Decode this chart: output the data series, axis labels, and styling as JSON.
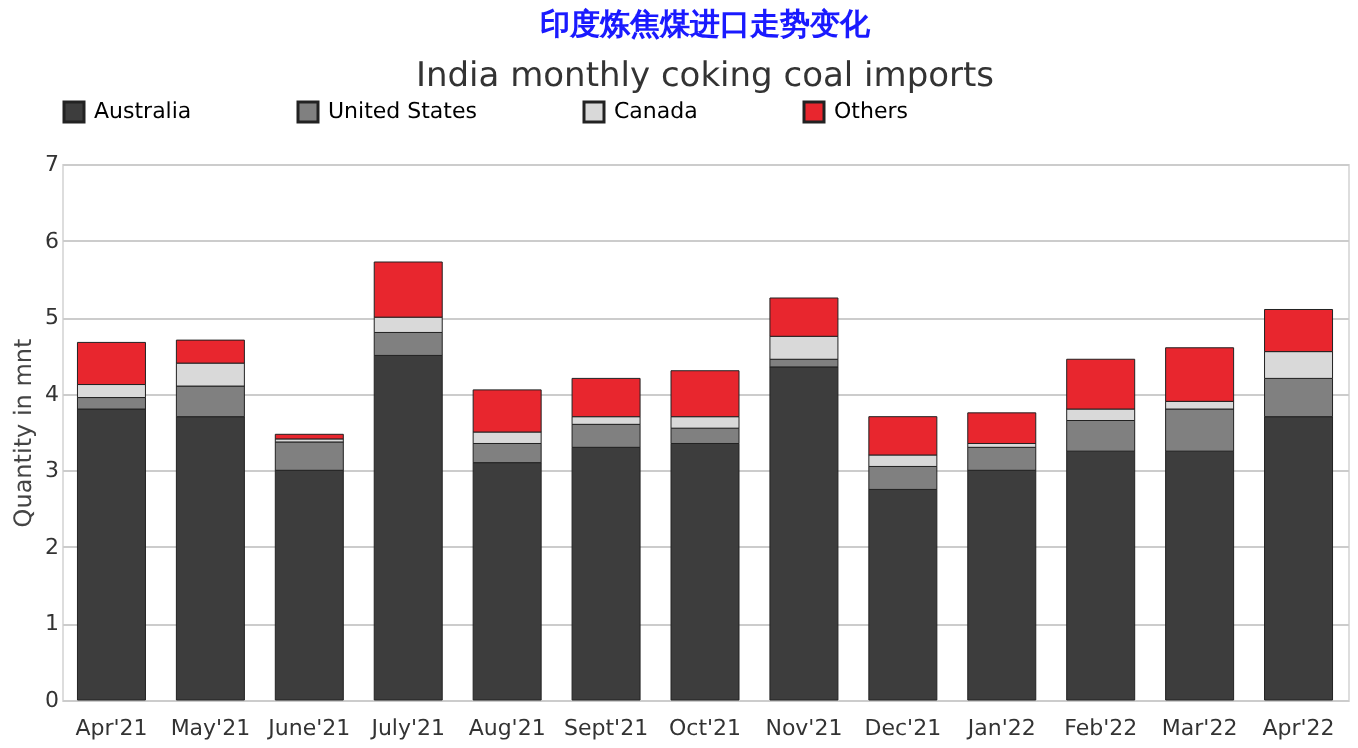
{
  "chart_data": {
    "type": "bar",
    "title": "印度炼焦煤进口走势变化",
    "subtitle": "India monthly coking coal imports",
    "ylabel": "Quantity in mnt",
    "stacked": true,
    "categories": [
      "Apr'21",
      "May'21",
      "June'21",
      "July'21",
      "Aug'21",
      "Sept'21",
      "Oct'21",
      "Nov'21",
      "Dec'21",
      "Jan'22",
      "Feb'22",
      "Mar'22",
      "Apr'22"
    ],
    "series": [
      {
        "name": "Australia",
        "color": "#3d3d3d",
        "values": [
          3.8,
          3.7,
          3.0,
          4.5,
          3.1,
          3.3,
          3.35,
          4.35,
          2.75,
          3.0,
          3.25,
          3.25,
          3.7
        ]
      },
      {
        "name": "United States",
        "color": "#808080",
        "values": [
          0.15,
          0.4,
          0.37,
          0.3,
          0.25,
          0.3,
          0.2,
          0.1,
          0.3,
          0.3,
          0.4,
          0.55,
          0.5
        ]
      },
      {
        "name": "Canada",
        "color": "#d9d9d9",
        "values": [
          0.17,
          0.3,
          0.04,
          0.2,
          0.15,
          0.1,
          0.15,
          0.3,
          0.15,
          0.05,
          0.15,
          0.1,
          0.35
        ]
      },
      {
        "name": "Others",
        "color": "#e8262e",
        "values": [
          0.55,
          0.3,
          0.06,
          0.72,
          0.55,
          0.5,
          0.6,
          0.5,
          0.5,
          0.4,
          0.65,
          0.7,
          0.55
        ]
      }
    ],
    "ylim": [
      0,
      7
    ],
    "yticks": [
      0,
      1,
      2,
      3,
      4,
      5,
      6,
      7
    ],
    "grid": "y",
    "legend": "top"
  }
}
